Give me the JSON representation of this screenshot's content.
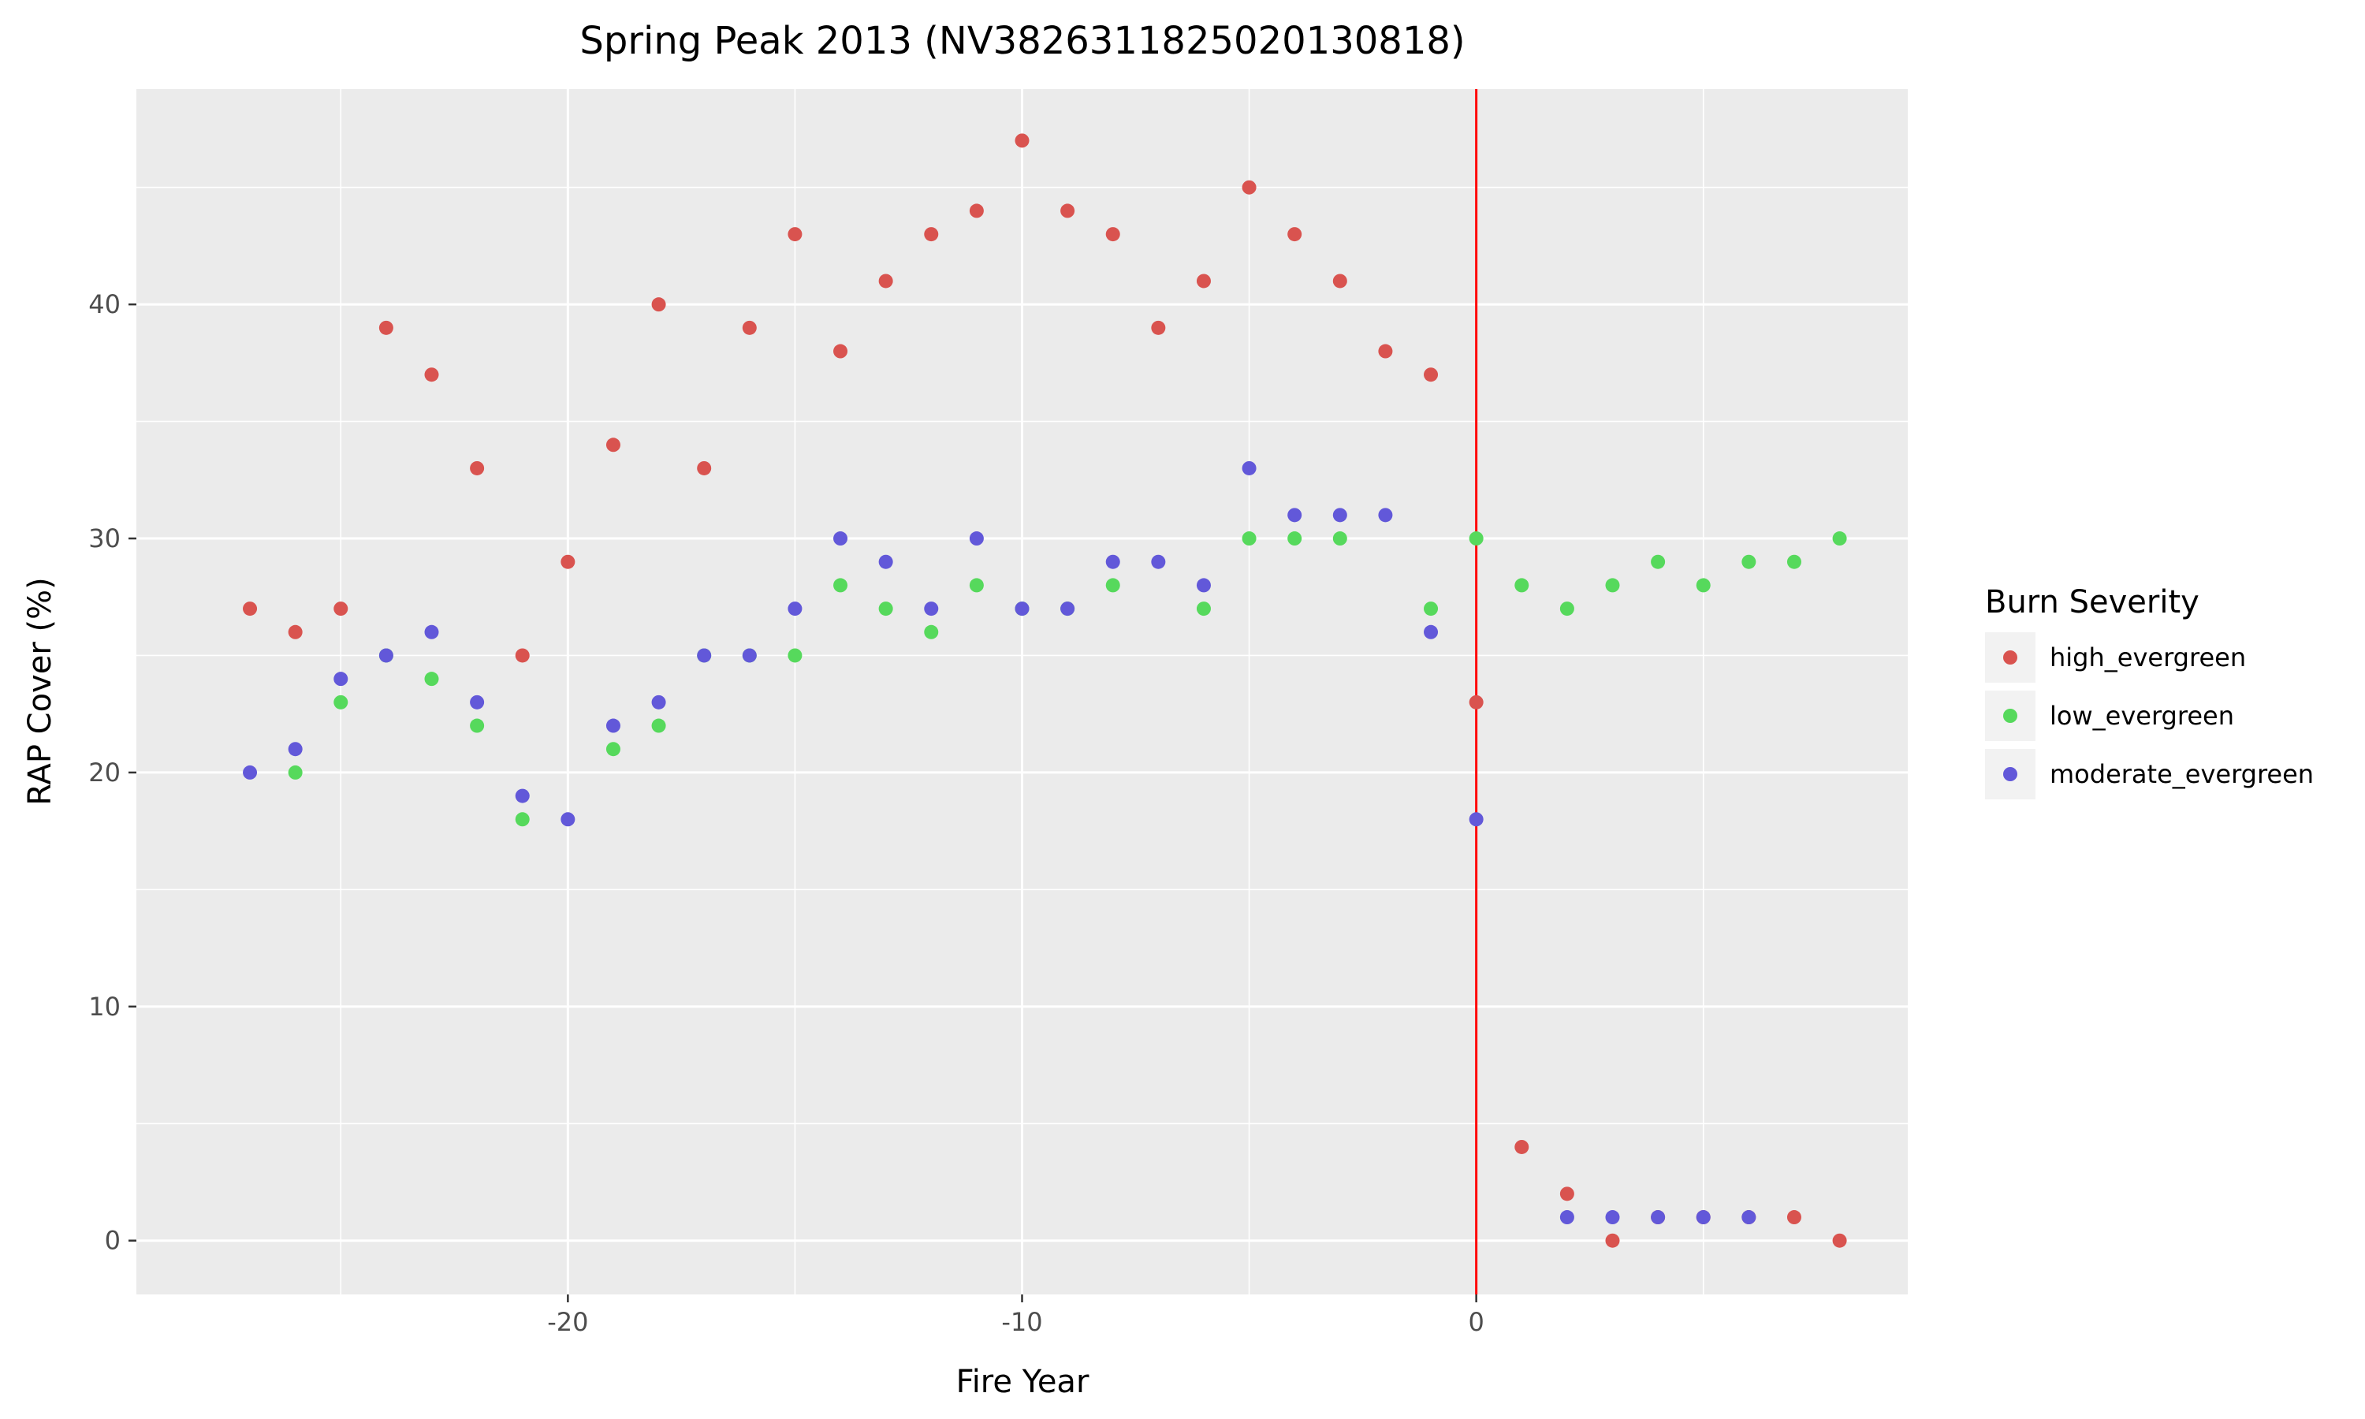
{
  "chart_data": {
    "type": "scatter",
    "title": "Spring Peak 2013 (NV3826311825020130818)",
    "xlabel": "Fire Year",
    "ylabel": "RAP Cover (%)",
    "xlim": [
      -29.5,
      9.5
    ],
    "ylim": [
      -2.3,
      49.2
    ],
    "x_ticks": [
      -20,
      -10,
      0
    ],
    "x_tick_labels": [
      "-20",
      "-10",
      "0"
    ],
    "y_ticks": [
      0,
      10,
      20,
      30,
      40
    ],
    "y_tick_labels": [
      "0",
      "10",
      "20",
      "30",
      "40"
    ],
    "grid": true,
    "background": "#ebebeb",
    "reference_line": {
      "axis": "x",
      "value": 0,
      "color": "#ff0000"
    },
    "legend": {
      "title": "Burn Severity",
      "placement": "right"
    },
    "series": [
      {
        "name": "high_evergreen",
        "color": "#d9534f",
        "x": [
          -27,
          -26,
          -25,
          -24,
          -23,
          -22,
          -21,
          -20,
          -19,
          -18,
          -17,
          -16,
          -15,
          -14,
          -13,
          -12,
          -11,
          -10,
          -9,
          -8,
          -7,
          -6,
          -5,
          -4,
          -3,
          -2,
          -1,
          0,
          1,
          2,
          3,
          4,
          5,
          6,
          7,
          8
        ],
        "y": [
          27,
          26,
          27,
          39,
          37,
          33,
          25,
          29,
          34,
          40,
          33,
          39,
          43,
          38,
          41,
          43,
          44,
          47,
          44,
          43,
          39,
          41,
          45,
          43,
          41,
          38,
          37,
          23,
          4,
          2,
          0,
          1,
          1,
          1,
          1,
          0
        ]
      },
      {
        "name": "low_evergreen",
        "color": "#56d95c",
        "x": [
          -26,
          -25,
          -24,
          -23,
          -22,
          -21,
          -19,
          -18,
          -17,
          -16,
          -15,
          -14,
          -13,
          -12,
          -11,
          -10,
          -9,
          -8,
          -6,
          -5,
          -4,
          -3,
          -1,
          0,
          1,
          2,
          3,
          4,
          5,
          6,
          7,
          8
        ],
        "y": [
          20,
          23,
          25,
          24,
          22,
          18,
          21,
          22,
          25,
          25,
          25,
          28,
          27,
          26,
          28,
          27,
          27,
          28,
          27,
          30,
          30,
          30,
          27,
          30,
          28,
          27,
          28,
          29,
          28,
          29,
          29,
          30
        ]
      },
      {
        "name": "moderate_evergreen",
        "color": "#6258d9",
        "x": [
          -27,
          -26,
          -25,
          -24,
          -23,
          -22,
          -21,
          -20,
          -19,
          -18,
          -17,
          -16,
          -15,
          -14,
          -13,
          -12,
          -11,
          -10,
          -9,
          -8,
          -7,
          -6,
          -5,
          -4,
          -3,
          -2,
          -1,
          0,
          2,
          3,
          4,
          5,
          6
        ],
        "y": [
          20,
          21,
          24,
          25,
          26,
          23,
          19,
          18,
          22,
          23,
          25,
          25,
          27,
          30,
          29,
          27,
          30,
          27,
          27,
          29,
          29,
          28,
          33,
          31,
          31,
          31,
          26,
          18,
          1,
          1,
          1,
          1,
          1
        ]
      }
    ]
  }
}
